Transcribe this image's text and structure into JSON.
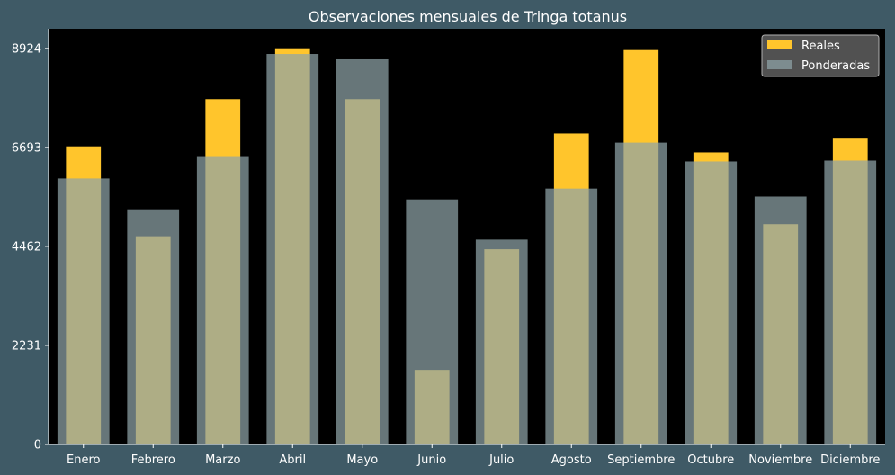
{
  "chart_data": {
    "type": "bar",
    "title": "Observaciones mensuales de Tringa totanus",
    "xlabel": "",
    "ylabel": "",
    "categories": [
      "Enero",
      "Febrero",
      "Marzo",
      "Abril",
      "Mayo",
      "Junio",
      "Julio",
      "Agosto",
      "Septiembre",
      "Octubre",
      "Noviembre",
      "Diciembre"
    ],
    "series": [
      {
        "name": "Reales",
        "color": "#ffc52c",
        "values": [
          6717,
          4691,
          7780,
          8927,
          7780,
          1680,
          4398,
          7006,
          8887,
          6580,
          4963,
          6910
        ]
      },
      {
        "name": "Ponderadas",
        "color": "#8fa3a8",
        "opacity": 0.72,
        "values": [
          5993,
          5298,
          6497,
          8799,
          8678,
          5521,
          4615,
          5765,
          6800,
          6377,
          5586,
          6397
        ]
      }
    ],
    "ylim": [
      0,
      9367
    ],
    "yticks": [
      "0",
      "2231",
      "4462",
      "6693",
      "8924"
    ],
    "ytick_values": [
      0,
      2231,
      4462,
      6693,
      8924
    ],
    "legend": {
      "position": "top-right",
      "entries": [
        "Reales",
        "Ponderadas"
      ]
    },
    "grid": false,
    "colors": {
      "figure_background": "#3f5a66",
      "plot_background": "#000000",
      "text": "#ffffff",
      "legend_background": "#5a5a5a",
      "legend_border": "#b0b0b0"
    }
  }
}
